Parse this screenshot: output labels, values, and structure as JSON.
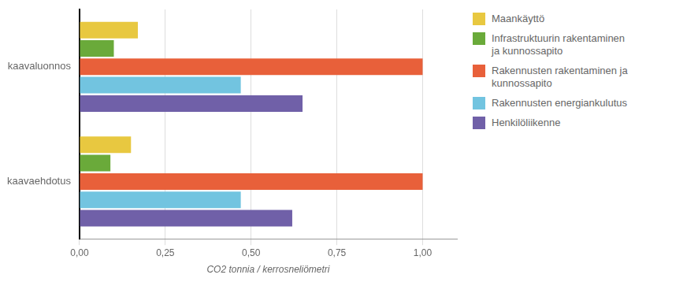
{
  "chart_data": {
    "type": "bar",
    "orientation": "horizontal",
    "categories": [
      "kaavaluonnos",
      "kaavaehdotus"
    ],
    "series": [
      {
        "name": "Maankäyttö",
        "color": "#E8C840",
        "values": [
          0.17,
          0.15
        ]
      },
      {
        "name": "Infrastruktuurin rakentaminen\nja kunnossapito",
        "color": "#6aaa3a",
        "values": [
          0.1,
          0.09
        ]
      },
      {
        "name": "Rakennusten rakentaminen ja\nkunnossapito",
        "color": "#E8603A",
        "values": [
          1.0,
          1.0
        ]
      },
      {
        "name": "Rakennusten energiankulutus",
        "color": "#72C4E0",
        "values": [
          0.47,
          0.47
        ]
      },
      {
        "name": "Henkilöliikenne",
        "color": "#7060A8",
        "values": [
          0.65,
          0.62
        ]
      }
    ],
    "xlabel": "CO2 tonnia / kerrosneliömetri",
    "xlim": [
      0,
      1.1
    ],
    "xticks": [
      {
        "value": 0.0,
        "label": "0,00"
      },
      {
        "value": 0.25,
        "label": "0,25"
      },
      {
        "value": 0.5,
        "label": "0,50"
      },
      {
        "value": 0.75,
        "label": "0,75"
      },
      {
        "value": 1.0,
        "label": "1,00"
      }
    ],
    "grid": true,
    "legend": "right"
  }
}
